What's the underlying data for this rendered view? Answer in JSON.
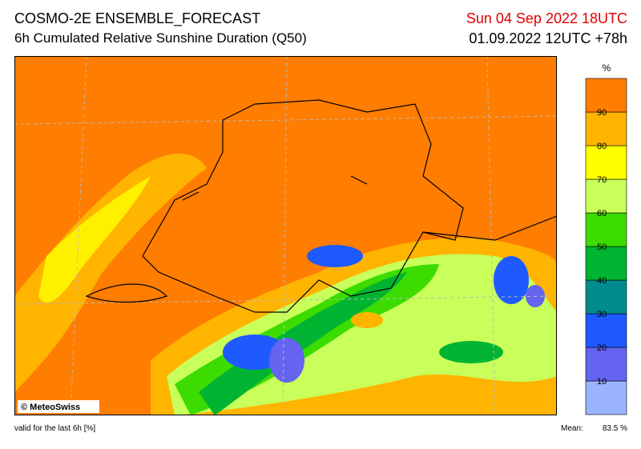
{
  "header": {
    "title": "COSMO-2E ENSEMBLE_FORECAST",
    "subtitle": "6h Cumulated Relative Sunshine Duration (Q50)",
    "valid_time": "Sun 04 Sep 2022 18UTC",
    "run": "01.09.2022 12UTC +78h"
  },
  "legend": {
    "unit": "%",
    "ticks": [
      10,
      20,
      30,
      40,
      50,
      60,
      70,
      80,
      90
    ],
    "colors": [
      "#9bb4ff",
      "#6464f0",
      "#1e5aff",
      "#008c8c",
      "#00b432",
      "#3cdc00",
      "#c8ff5a",
      "#ffff00",
      "#ffb400",
      "#ff7d00"
    ]
  },
  "map": {
    "copyright": "© MeteoSwiss"
  },
  "footer": {
    "note": "valid for the last 6h [%]",
    "mean_label": "Mean:",
    "mean": "83.5 %"
  }
}
